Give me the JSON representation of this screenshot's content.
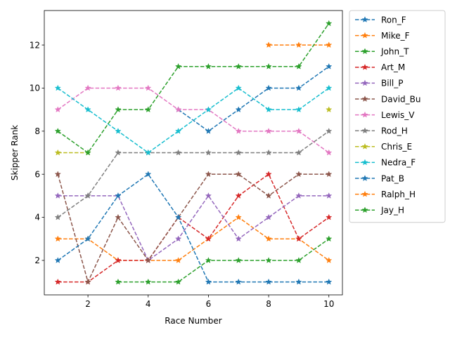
{
  "chart_data": {
    "type": "line",
    "title": "",
    "xlabel": "Race Number",
    "ylabel": "Skipper Rank",
    "xlim": [
      0.55,
      10.45
    ],
    "ylim": [
      0.4,
      13.6
    ],
    "xticks": [
      2,
      4,
      6,
      8,
      10
    ],
    "yticks": [
      2,
      4,
      6,
      8,
      10,
      12
    ],
    "grid": false,
    "legend_position": "outside-right",
    "line_style": "dashed",
    "marker": "star",
    "x": [
      1,
      2,
      3,
      4,
      5,
      6,
      7,
      8,
      9,
      10
    ],
    "series": [
      {
        "name": "Ron_F",
        "color": "#1f77b4",
        "values": [
          null,
          null,
          null,
          null,
          9,
          8,
          9,
          10,
          10,
          11
        ]
      },
      {
        "name": "Mike_F",
        "color": "#ff7f0e",
        "values": [
          3,
          3,
          2,
          2,
          2,
          3,
          4,
          3,
          3,
          2
        ]
      },
      {
        "name": "John_T",
        "color": "#2ca02c",
        "values": [
          null,
          null,
          1,
          1,
          1,
          2,
          2,
          2,
          2,
          3
        ]
      },
      {
        "name": "Art_M",
        "color": "#d62728",
        "values": [
          1,
          1,
          2,
          2,
          4,
          3,
          5,
          6,
          3,
          4
        ]
      },
      {
        "name": "Bill_P",
        "color": "#9467bd",
        "values": [
          5,
          5,
          5,
          2,
          3,
          5,
          3,
          4,
          5,
          5
        ]
      },
      {
        "name": "David_Bu",
        "color": "#8c564b",
        "values": [
          6,
          1,
          4,
          2,
          4,
          6,
          6,
          5,
          6,
          6
        ]
      },
      {
        "name": "Lewis_V",
        "color": "#e377c2",
        "values": [
          9,
          10,
          10,
          10,
          9,
          9,
          8,
          8,
          8,
          7
        ]
      },
      {
        "name": "Rod_H",
        "color": "#7f7f7f",
        "values": [
          4,
          5,
          7,
          7,
          7,
          7,
          7,
          7,
          7,
          8
        ]
      },
      {
        "name": "Chris_E",
        "color": "#bcbd22",
        "values": [
          7,
          7,
          null,
          null,
          null,
          null,
          null,
          null,
          null,
          9
        ]
      },
      {
        "name": "Nedra_F",
        "color": "#17becf",
        "values": [
          10,
          9,
          8,
          7,
          8,
          9,
          10,
          9,
          9,
          10
        ]
      },
      {
        "name": "Pat_B",
        "color": "#1f77b4",
        "values": [
          2,
          3,
          5,
          6,
          4,
          1,
          1,
          1,
          1,
          1
        ]
      },
      {
        "name": "Ralph_H",
        "color": "#ff7f0e",
        "values": [
          null,
          null,
          null,
          null,
          null,
          null,
          null,
          12,
          12,
          12
        ]
      },
      {
        "name": "Jay_H",
        "color": "#2ca02c",
        "values": [
          8,
          7,
          9,
          9,
          11,
          11,
          11,
          11,
          11,
          13
        ]
      }
    ]
  }
}
